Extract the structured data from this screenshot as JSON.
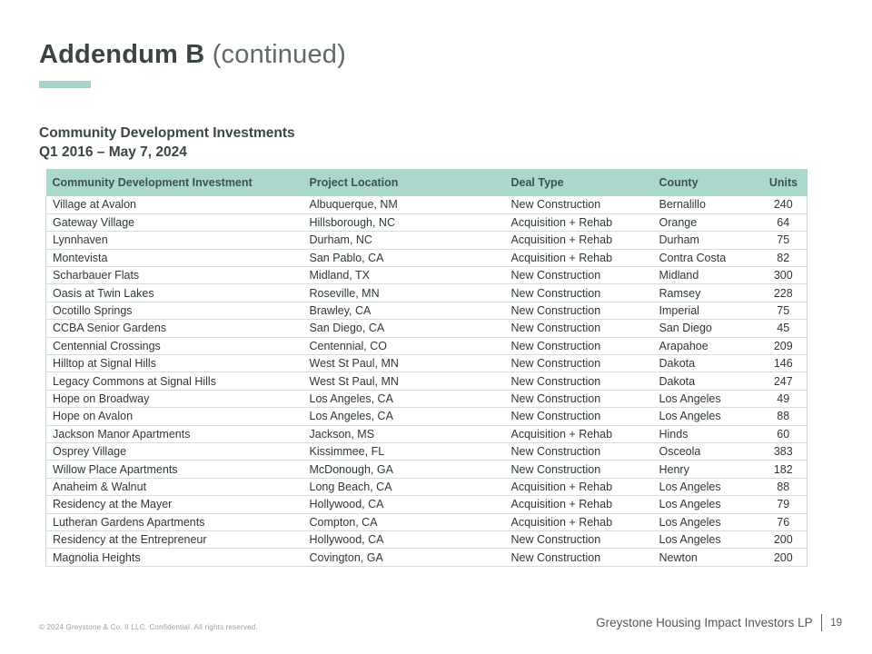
{
  "slide": {
    "title": "Addendum B",
    "title_suffix": " (continued)",
    "subtitle_line1": "Community Development Investments",
    "subtitle_line2": "Q1 2016 – May 7, 2024"
  },
  "table": {
    "columns": [
      "Community Development Investment",
      "Project Location",
      "Deal Type",
      "County",
      "Units"
    ],
    "rows": [
      [
        "Village at Avalon",
        "Albuquerque, NM",
        "New Construction",
        "Bernalillo",
        "240"
      ],
      [
        "Gateway Village",
        "Hillsborough, NC",
        "Acquisition + Rehab",
        "Orange",
        "64"
      ],
      [
        "Lynnhaven",
        "Durham, NC",
        "Acquisition + Rehab",
        "Durham",
        "75"
      ],
      [
        "Montevista",
        "San Pablo, CA",
        "Acquisition + Rehab",
        "Contra Costa",
        "82"
      ],
      [
        "Scharbauer Flats",
        "Midland, TX",
        "New Construction",
        "Midland",
        "300"
      ],
      [
        "Oasis at Twin Lakes",
        "Roseville, MN",
        "New Construction",
        "Ramsey",
        "228"
      ],
      [
        "Ocotillo Springs",
        "Brawley, CA",
        "New Construction",
        "Imperial",
        "75"
      ],
      [
        "CCBA Senior Gardens",
        "San Diego, CA",
        "New Construction",
        "San Diego",
        "45"
      ],
      [
        "Centennial Crossings",
        "Centennial, CO",
        "New Construction",
        "Arapahoe",
        "209"
      ],
      [
        "Hilltop at Signal Hills",
        "West St Paul, MN",
        "New Construction",
        "Dakota",
        "146"
      ],
      [
        "Legacy Commons at Signal Hills",
        "West St Paul, MN",
        "New Construction",
        "Dakota",
        "247"
      ],
      [
        "Hope on Broadway",
        "Los Angeles, CA",
        "New Construction",
        "Los Angeles",
        "49"
      ],
      [
        "Hope on Avalon",
        "Los Angeles, CA",
        "New Construction",
        "Los Angeles",
        "88"
      ],
      [
        "Jackson Manor Apartments",
        "Jackson, MS",
        "Acquisition + Rehab",
        "Hinds",
        "60"
      ],
      [
        "Osprey Village",
        "Kissimmee, FL",
        "New Construction",
        "Osceola",
        "383"
      ],
      [
        "Willow Place Apartments",
        "McDonough, GA",
        "New Construction",
        "Henry",
        "182"
      ],
      [
        "Anaheim & Walnut",
        "Long Beach, CA",
        "Acquisition + Rehab",
        "Los Angeles",
        "88"
      ],
      [
        "Residency at the Mayer",
        "Hollywood, CA",
        "Acquisition + Rehab",
        "Los Angeles",
        "79"
      ],
      [
        "Lutheran Gardens Apartments",
        "Compton, CA",
        "Acquisition + Rehab",
        "Los Angeles",
        "76"
      ],
      [
        "Residency at the Entrepreneur",
        "Hollywood, CA",
        "New Construction",
        "Los Angeles",
        "200"
      ],
      [
        "Magnolia Heights",
        "Covington, GA",
        "New Construction",
        "Newton",
        "200"
      ]
    ],
    "cell_names": [
      "cell-investment",
      "cell-location",
      "cell-deal-type",
      "cell-county",
      "cell-units"
    ]
  },
  "footer": {
    "copyright": "© 2024 Greystone & Co. II LLC. Confidential. All rights reserved.",
    "company": "Greystone Housing Impact Investors LP",
    "page_number": "19"
  },
  "colors": {
    "accent_teal": "#a6d3c9",
    "table_header_bg": "#abd7cd",
    "title_dark": "#3b4644",
    "body_text": "#2f3737"
  }
}
